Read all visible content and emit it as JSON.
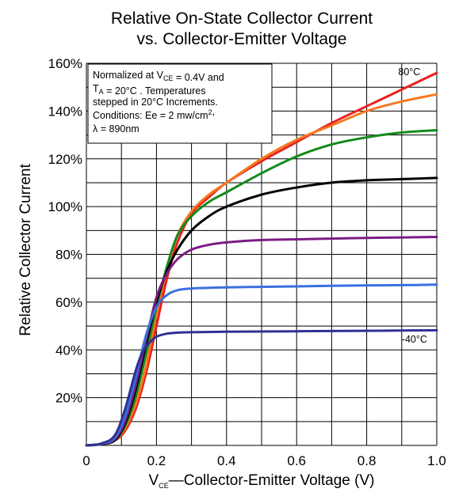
{
  "chart_data": {
    "type": "line",
    "title": [
      "Relative On-State Collector Current",
      "vs. Collector-Emitter Voltage"
    ],
    "xlabel": {
      "prefix": "V",
      "sub": "CE",
      "rest": "—Collector-Emitter Voltage (V)"
    },
    "ylabel": "Relative Collector Current",
    "xlim": [
      0,
      1.0
    ],
    "ylim": [
      0,
      160
    ],
    "x_ticks": [
      0,
      0.2,
      0.4,
      0.6,
      0.8,
      1.0
    ],
    "x_tick_labels": [
      "0",
      "0.2",
      "0.4",
      "0.6",
      "0.8",
      "1.0"
    ],
    "y_ticks": [
      20,
      40,
      60,
      80,
      100,
      120,
      140,
      160
    ],
    "y_tick_labels": [
      "20%",
      "40%",
      "60%",
      "80%",
      "100%",
      "120%",
      "140%",
      "160%"
    ],
    "grid": true,
    "annotation_lines": [
      [
        {
          "t": "Normalized at V"
        },
        {
          "t": "CE",
          "sub": true
        },
        {
          "t": " = 0.4V and"
        }
      ],
      [
        {
          "t": "T"
        },
        {
          "t": "A",
          "sub": true
        },
        {
          "t": " = 20°C .  Temperatures"
        }
      ],
      [
        {
          "t": "stepped in 20°C Increments."
        }
      ],
      [
        {
          "t": "Conditions: Ee = 2 mw/cm"
        },
        {
          "t": "2",
          "sup": true
        },
        {
          "t": ","
        }
      ],
      [
        {
          "t": "λ = 890nm"
        }
      ]
    ],
    "curve_labels": [
      {
        "text": "80°C",
        "x": 0.89,
        "y": 155
      },
      {
        "text": "-40°C",
        "x": 0.9,
        "y": 43
      }
    ],
    "series": [
      {
        "color": "#e8211f",
        "x": [
          0,
          0.04,
          0.08,
          0.11,
          0.14,
          0.17,
          0.2,
          0.23,
          0.26,
          0.3,
          0.35,
          0.4,
          0.5,
          0.6,
          0.7,
          0.8,
          0.9,
          1.0
        ],
        "y": [
          0,
          0.5,
          2,
          6,
          15,
          30,
          50,
          70,
          85,
          97,
          104,
          110,
          119,
          127,
          135,
          142,
          149,
          156
        ]
      },
      {
        "color": "#f47920",
        "x": [
          0,
          0.04,
          0.08,
          0.11,
          0.14,
          0.17,
          0.2,
          0.23,
          0.26,
          0.3,
          0.35,
          0.4,
          0.5,
          0.6,
          0.7,
          0.8,
          0.9,
          1.0
        ],
        "y": [
          0,
          0.5,
          2,
          7,
          17,
          33,
          55,
          74,
          88,
          98,
          105,
          110,
          120,
          128,
          134,
          140,
          144,
          147
        ]
      },
      {
        "color": "#138a1c",
        "x": [
          0,
          0.04,
          0.08,
          0.11,
          0.14,
          0.17,
          0.2,
          0.23,
          0.26,
          0.3,
          0.35,
          0.4,
          0.5,
          0.6,
          0.7,
          0.8,
          0.9,
          1.0
        ],
        "y": [
          0,
          0.5,
          2,
          8,
          20,
          38,
          58,
          75,
          88,
          96,
          102,
          106,
          114,
          121,
          126,
          129,
          131,
          132
        ]
      },
      {
        "color": "#000000",
        "x": [
          0,
          0.04,
          0.08,
          0.11,
          0.14,
          0.17,
          0.2,
          0.23,
          0.26,
          0.3,
          0.35,
          0.4,
          0.5,
          0.6,
          0.7,
          0.8,
          0.9,
          1.0
        ],
        "y": [
          0,
          0.5,
          2,
          9,
          23,
          42,
          60,
          73,
          82,
          90,
          96,
          100,
          105,
          108,
          110,
          111,
          111.5,
          112
        ]
      },
      {
        "color": "#7b1c84",
        "x": [
          0,
          0.04,
          0.08,
          0.11,
          0.14,
          0.17,
          0.2,
          0.23,
          0.26,
          0.3,
          0.35,
          0.4,
          0.5,
          0.6,
          0.7,
          0.8,
          0.9,
          1.0
        ],
        "y": [
          0,
          0.5,
          2.5,
          10,
          25,
          44,
          62,
          72,
          78,
          82,
          84,
          85,
          86,
          86.3,
          86.6,
          86.9,
          87.1,
          87.3
        ]
      },
      {
        "color": "#3a6fe0",
        "x": [
          0,
          0.04,
          0.08,
          0.11,
          0.14,
          0.17,
          0.2,
          0.23,
          0.26,
          0.3,
          0.35,
          0.4,
          0.5,
          0.6,
          0.7,
          0.8,
          0.9,
          1.0
        ],
        "y": [
          0,
          0.6,
          3,
          12,
          28,
          46,
          58,
          63,
          65,
          65.7,
          66,
          66.2,
          66.4,
          66.6,
          66.8,
          67,
          67.1,
          67.3
        ]
      },
      {
        "color": "#2e3192",
        "x": [
          0,
          0.04,
          0.08,
          0.11,
          0.14,
          0.16,
          0.18,
          0.2,
          0.23,
          0.26,
          0.3,
          0.4,
          0.5,
          0.6,
          0.7,
          0.8,
          0.9,
          1.0
        ],
        "y": [
          0,
          0.7,
          4,
          15,
          31,
          39,
          43,
          45.5,
          46.8,
          47.2,
          47.4,
          47.6,
          47.7,
          47.8,
          47.9,
          48,
          48.1,
          48.2
        ]
      }
    ]
  }
}
